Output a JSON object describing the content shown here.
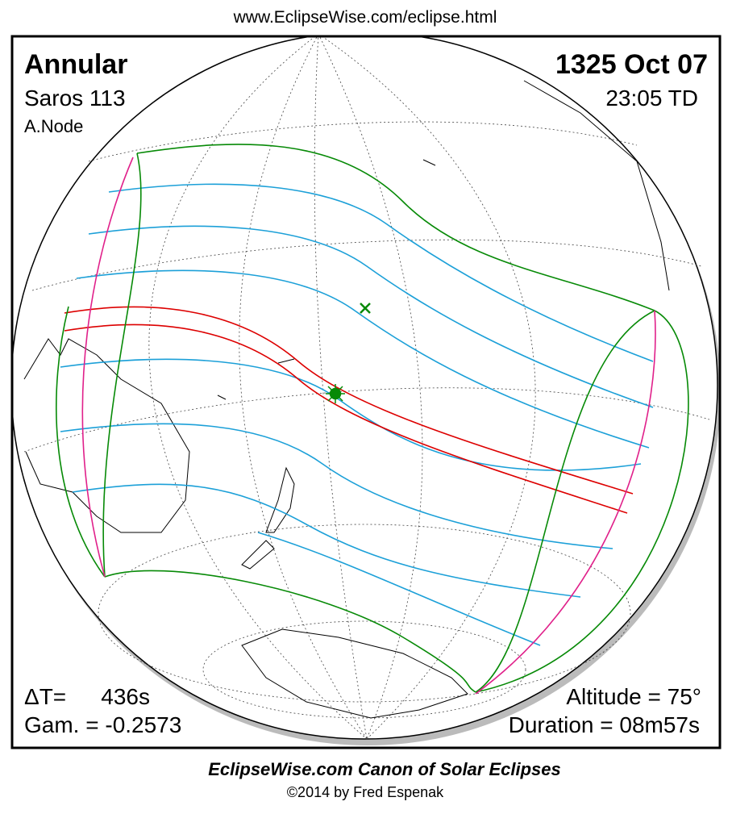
{
  "header": {
    "url": "www.EclipseWise.com/eclipse.html"
  },
  "panel": {
    "eclipse_type": "Annular",
    "date": "1325 Oct 07",
    "saros": "Saros 113",
    "time": "23:05 TD",
    "node": "A.Node",
    "delta_t_label": "ΔT=",
    "delta_t_value": "436s",
    "gamma": "Gam. = -0.2573",
    "altitude": "Altitude = 75°",
    "duration": "Duration = 08m57s"
  },
  "footer": {
    "title": "EclipseWise.com Canon of Solar Eclipses",
    "credit": "©2014 by Fred Espenak"
  }
}
